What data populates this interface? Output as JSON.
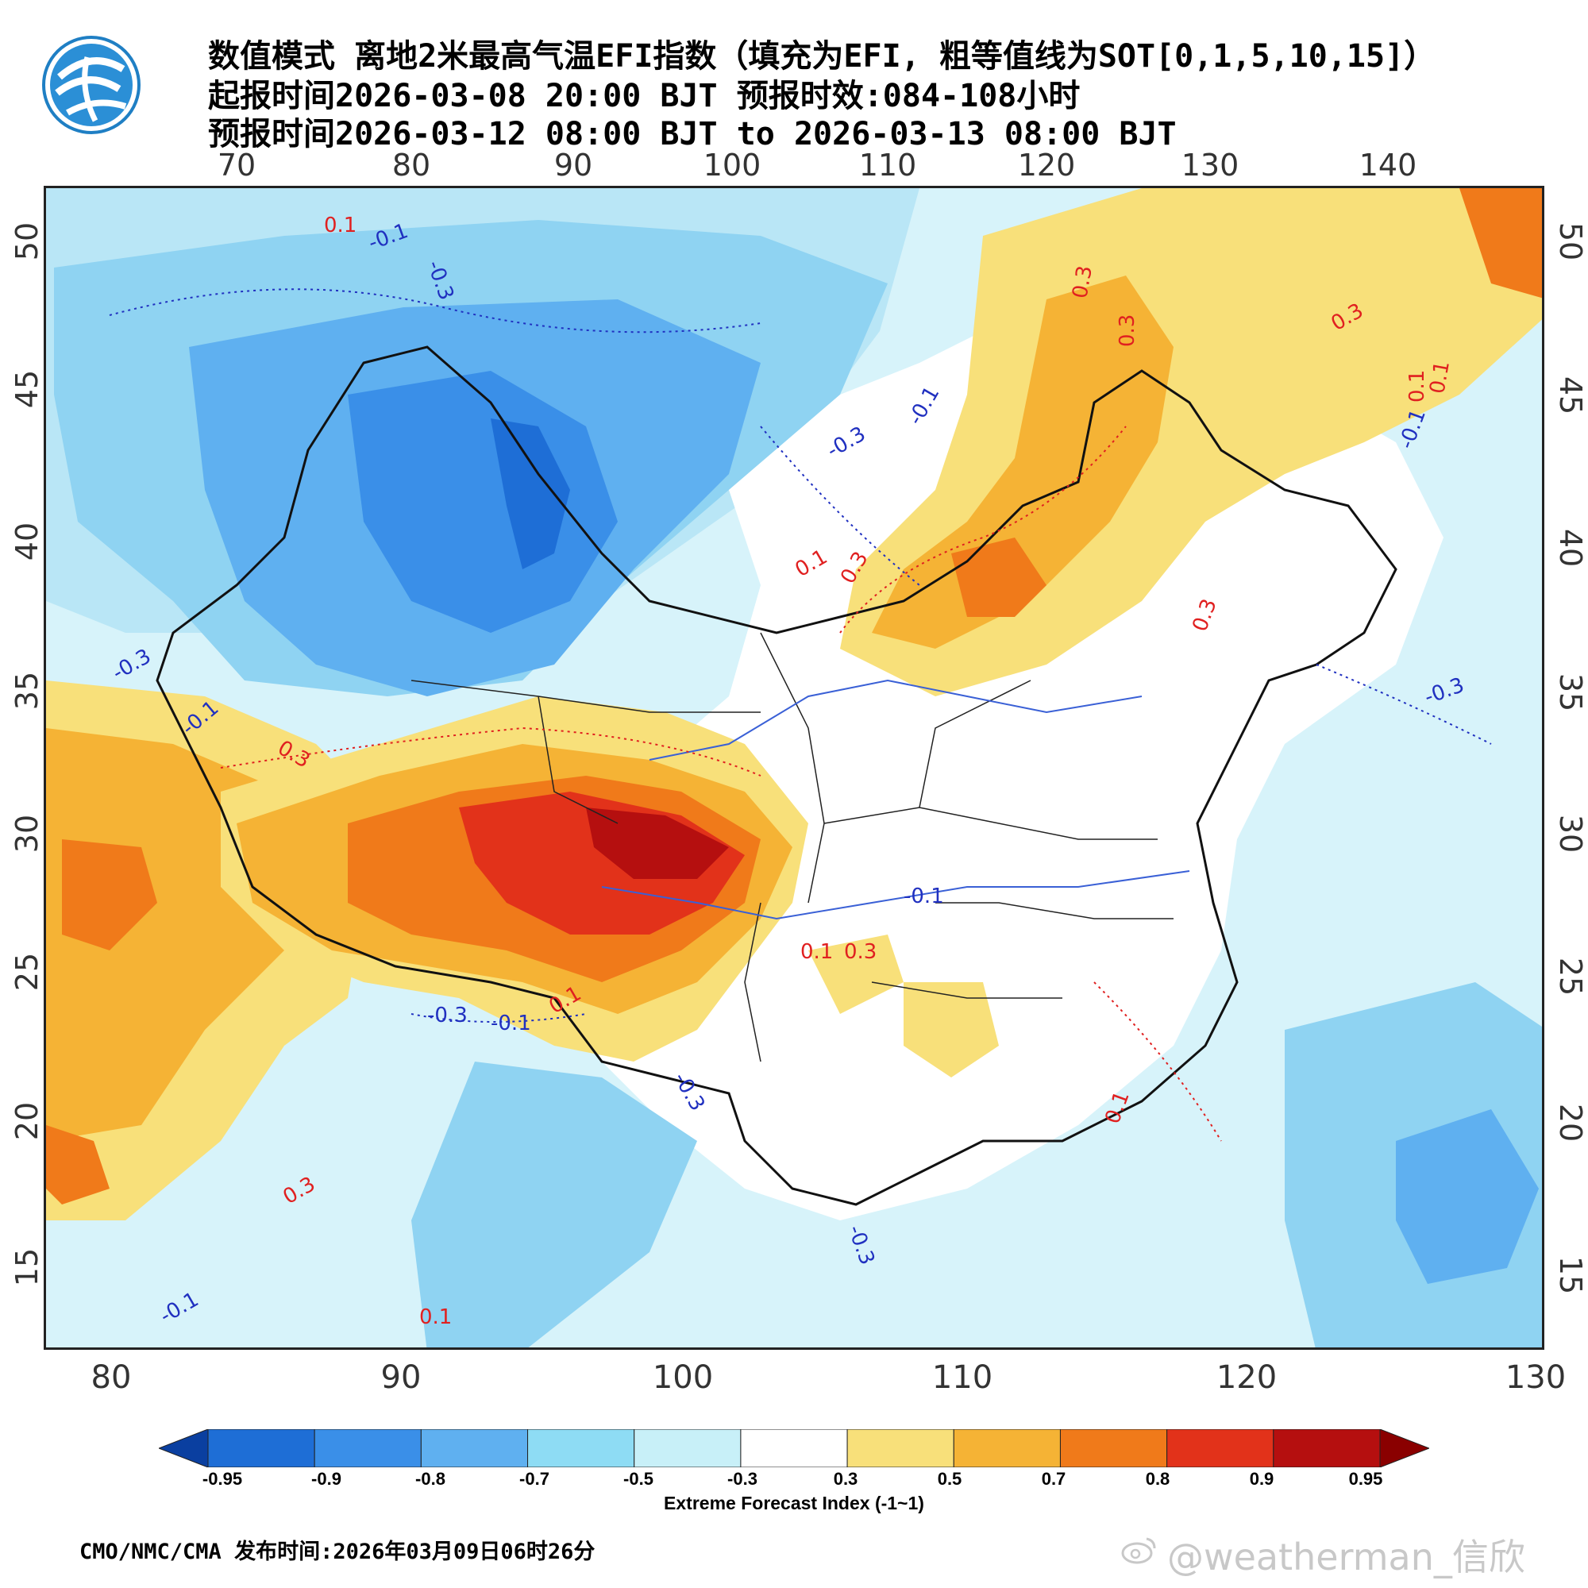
{
  "header": {
    "title_line1": "数值模式 离地2米最高气温EFI指数（填充为EFI, 粗等值线为SOT[0,1,5,10,15]）",
    "title_line2": "起报时间2026-03-08 20:00 BJT 预报时效:084-108小时",
    "title_line3": "预报时间2026-03-12 08:00 BJT to 2026-03-13 08:00 BJT",
    "logo": "cma-logo"
  },
  "map": {
    "top_lon_labels": [
      "70",
      "80",
      "90",
      "100",
      "110",
      "120",
      "130",
      "140"
    ],
    "bottom_lon_labels": [
      "80",
      "90",
      "100",
      "110",
      "120",
      "130"
    ],
    "lat_labels": [
      "50",
      "45",
      "40",
      "35",
      "30",
      "25",
      "20",
      "15"
    ],
    "contour_labels": [
      {
        "text": "0.1",
        "color": "#e02020"
      },
      {
        "text": "-0.1",
        "color": "#2030c0"
      },
      {
        "text": "-0.3",
        "color": "#2030c0"
      },
      {
        "text": "0.3",
        "color": "#e02020"
      },
      {
        "text": "0.1",
        "color": "#e02020"
      },
      {
        "text": "0.3",
        "color": "#e02020"
      },
      {
        "text": "-0.1",
        "color": "#2030c0"
      },
      {
        "text": "-0.3",
        "color": "#2030c0"
      },
      {
        "text": "0.3",
        "color": "#e02020"
      },
      {
        "text": "0.1",
        "color": "#e02020"
      },
      {
        "text": "0.3",
        "color": "#e02020"
      },
      {
        "text": "0.1",
        "color": "#e02020"
      },
      {
        "text": "-0.1",
        "color": "#2030c0"
      },
      {
        "text": "0.3",
        "color": "#e02020"
      },
      {
        "text": "-0.3",
        "color": "#2030c0"
      },
      {
        "text": "-0.3",
        "color": "#2030c0"
      },
      {
        "text": "-0.1",
        "color": "#2030c0"
      },
      {
        "text": "0.3",
        "color": "#e02020"
      },
      {
        "text": "-0.3",
        "color": "#2030c0"
      },
      {
        "text": "-0.1",
        "color": "#2030c0"
      },
      {
        "text": "0.1",
        "color": "#e02020"
      },
      {
        "text": "0.1",
        "color": "#e02020"
      },
      {
        "text": "0.1",
        "color": "#e02020"
      },
      {
        "text": "0.3",
        "color": "#e02020"
      },
      {
        "text": "-0.1",
        "color": "#2030c0"
      },
      {
        "text": "0.1",
        "color": "#e02020"
      },
      {
        "text": "-0.3",
        "color": "#2030c0"
      },
      {
        "text": "-0.1",
        "color": "#2030c0"
      },
      {
        "text": "0.3",
        "color": "#e02020"
      },
      {
        "text": "-0.3",
        "color": "#2030c0"
      }
    ]
  },
  "colorbar": {
    "labels": [
      "-0.95",
      "-0.9",
      "-0.8",
      "-0.7",
      "-0.5",
      "-0.3",
      "0.3",
      "0.5",
      "0.7",
      "0.8",
      "0.9",
      "0.95"
    ],
    "colors": [
      "#0a3fa0",
      "#1e6ed6",
      "#3a8fe8",
      "#5fb0f0",
      "#8edcf4",
      "#c8f0f8",
      "#ffffff",
      "#f8e07a",
      "#f5b335",
      "#f07a1a",
      "#e2321a",
      "#b50f0f",
      "#8a0000"
    ],
    "title": "Extreme Forecast Index (-1~1)"
  },
  "footer": {
    "text": "CMO/NMC/CMA 发布时间:2026年03月09日06时26分",
    "watermark": "@weatherman_信欣"
  }
}
